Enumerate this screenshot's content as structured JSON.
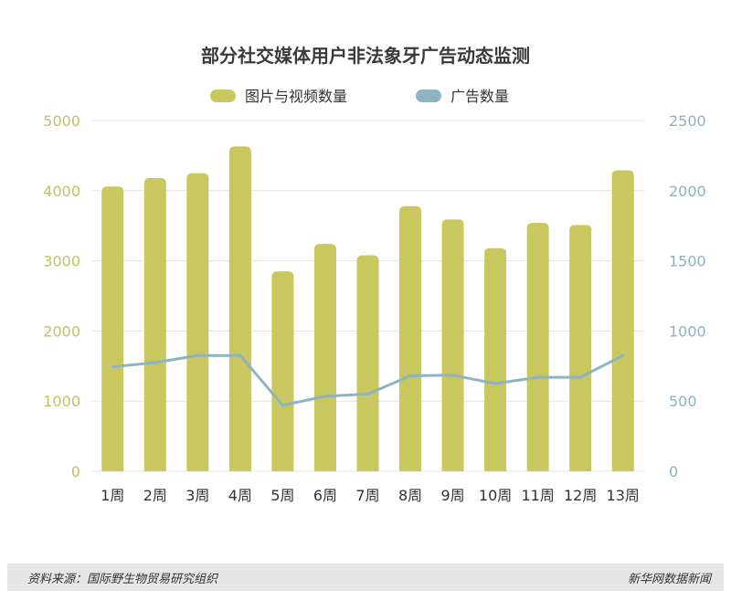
{
  "chart_data": {
    "type": "bar+line",
    "title": "部分社交媒体用户非法象牙广告动态监测",
    "categories": [
      "1周",
      "2周",
      "3周",
      "4周",
      "5周",
      "6周",
      "7周",
      "8周",
      "9周",
      "10周",
      "11周",
      "12周",
      "13周"
    ],
    "series": [
      {
        "name": "图片与视频数量",
        "type": "bar",
        "axis": "left",
        "color": "#c8c85e",
        "values": [
          4060,
          4180,
          4250,
          4630,
          2850,
          3240,
          3080,
          3780,
          3590,
          3180,
          3540,
          3510,
          4290
        ]
      },
      {
        "name": "广告数量",
        "type": "line",
        "axis": "right",
        "color": "#8fb3c2",
        "values": [
          745,
          775,
          825,
          825,
          470,
          535,
          550,
          680,
          685,
          625,
          670,
          670,
          825
        ]
      }
    ],
    "left_axis": {
      "ylim": [
        0,
        5000
      ],
      "ticks": [
        "0",
        "1000",
        "2000",
        "3000",
        "4000",
        "5000"
      ],
      "color": "#c2c35e"
    },
    "right_axis": {
      "ylim": [
        0,
        2500
      ],
      "ticks": [
        "0",
        "500",
        "1000",
        "1500",
        "2000",
        "2500"
      ],
      "color": "#8fb1bf"
    },
    "grid": true,
    "legend_position": "top"
  },
  "footer": {
    "source": "资料来源：国际野生物贸易研究组织",
    "brand": "新华网数据新闻"
  }
}
